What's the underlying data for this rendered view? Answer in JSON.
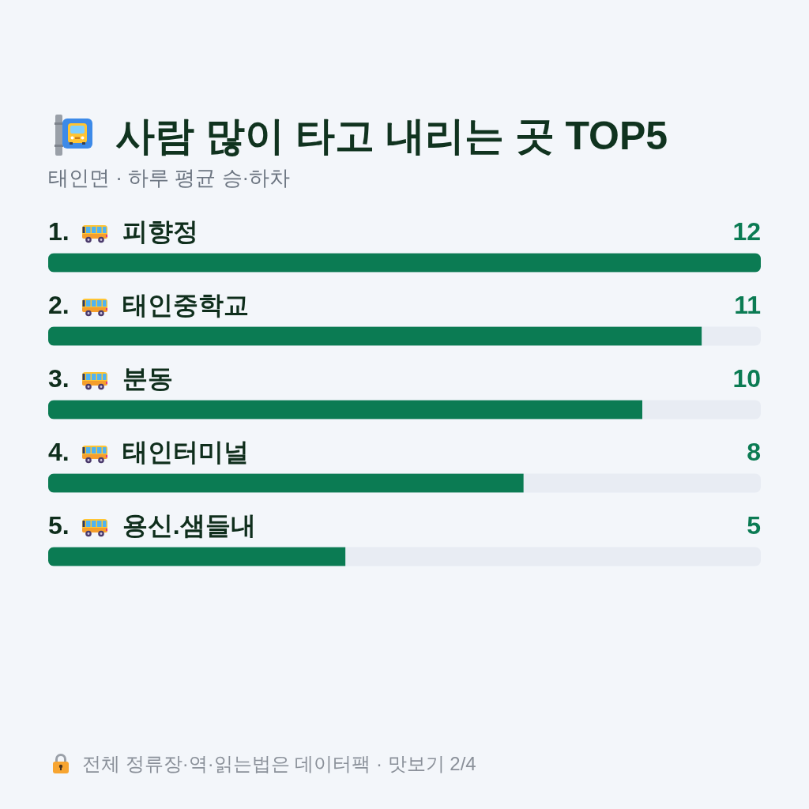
{
  "chart_data": {
    "type": "bar",
    "orientation": "horizontal",
    "title": "사람 많이 타고 내리는 곳 TOP5",
    "subtitle": "태인면 · 하루 평균 승·하차",
    "categories": [
      "1. 피향정",
      "2. 태인중학교",
      "3. 분동",
      "4. 태인터미널",
      "5. 용신.샘들내"
    ],
    "values": [
      12,
      11,
      10,
      8,
      5
    ],
    "color": "#0b7b53",
    "xlim": [
      0,
      12
    ],
    "tick_labels": "y",
    "data_labels": true,
    "annotations": [
      "전체 정류장·역·읽는법은 데이터팩 · 맛보기 2/4"
    ]
  }
}
